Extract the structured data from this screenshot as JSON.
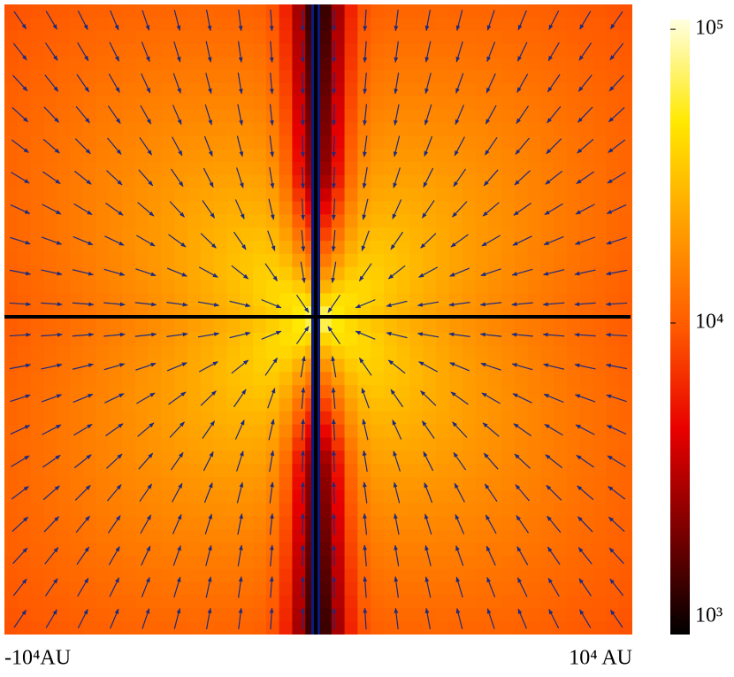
{
  "chart_data": {
    "type": "heatmap",
    "xlim": [
      -10000,
      10000
    ],
    "xticks": [
      {
        "value": -10000,
        "label": "-10⁴AU"
      },
      {
        "value": 10000,
        "label": "10⁴ AU"
      }
    ],
    "colorbar": {
      "lim": [
        870,
        108000
      ],
      "log": true,
      "ticks": [
        {
          "value": 1000,
          "label": "10³"
        },
        {
          "value": 10000,
          "label": "10⁴"
        },
        {
          "value": 100000,
          "label": "10⁵"
        }
      ],
      "colormap": [
        "#000000",
        "#7a0000",
        "#e80000",
        "#ff5a00",
        "#ffa000",
        "#ffe800",
        "#ffffe0"
      ]
    }
  }
}
